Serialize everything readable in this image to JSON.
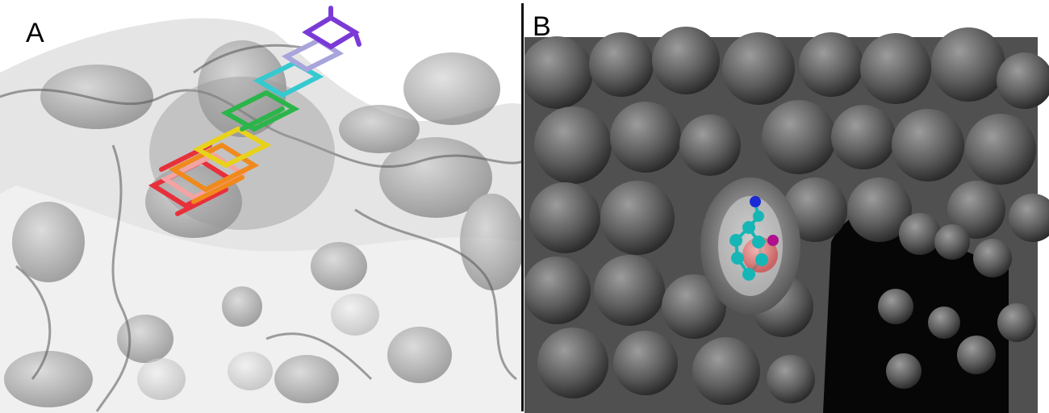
{
  "figure": {
    "panel_a": {
      "label": "A"
    },
    "panel_b": {
      "label": "B"
    }
  },
  "colors": {
    "surface_light": "#d8d8d8",
    "surface_dark": "#5a5a5a",
    "ligand_red": "#e8303a",
    "ligand_orange": "#f08a1c",
    "ligand_yellow": "#e8d21c",
    "ligand_green": "#2bb54a",
    "ligand_cyan": "#36c9cf",
    "ligand_lavender": "#a8a4dc",
    "ligand_purple": "#7a3ad6",
    "atom_carbon": "#17b6b6",
    "atom_nitrogen": "#1a2bd6",
    "atom_oxygen_sphere": "#e06060",
    "atom_magenta": "#b0108c"
  }
}
